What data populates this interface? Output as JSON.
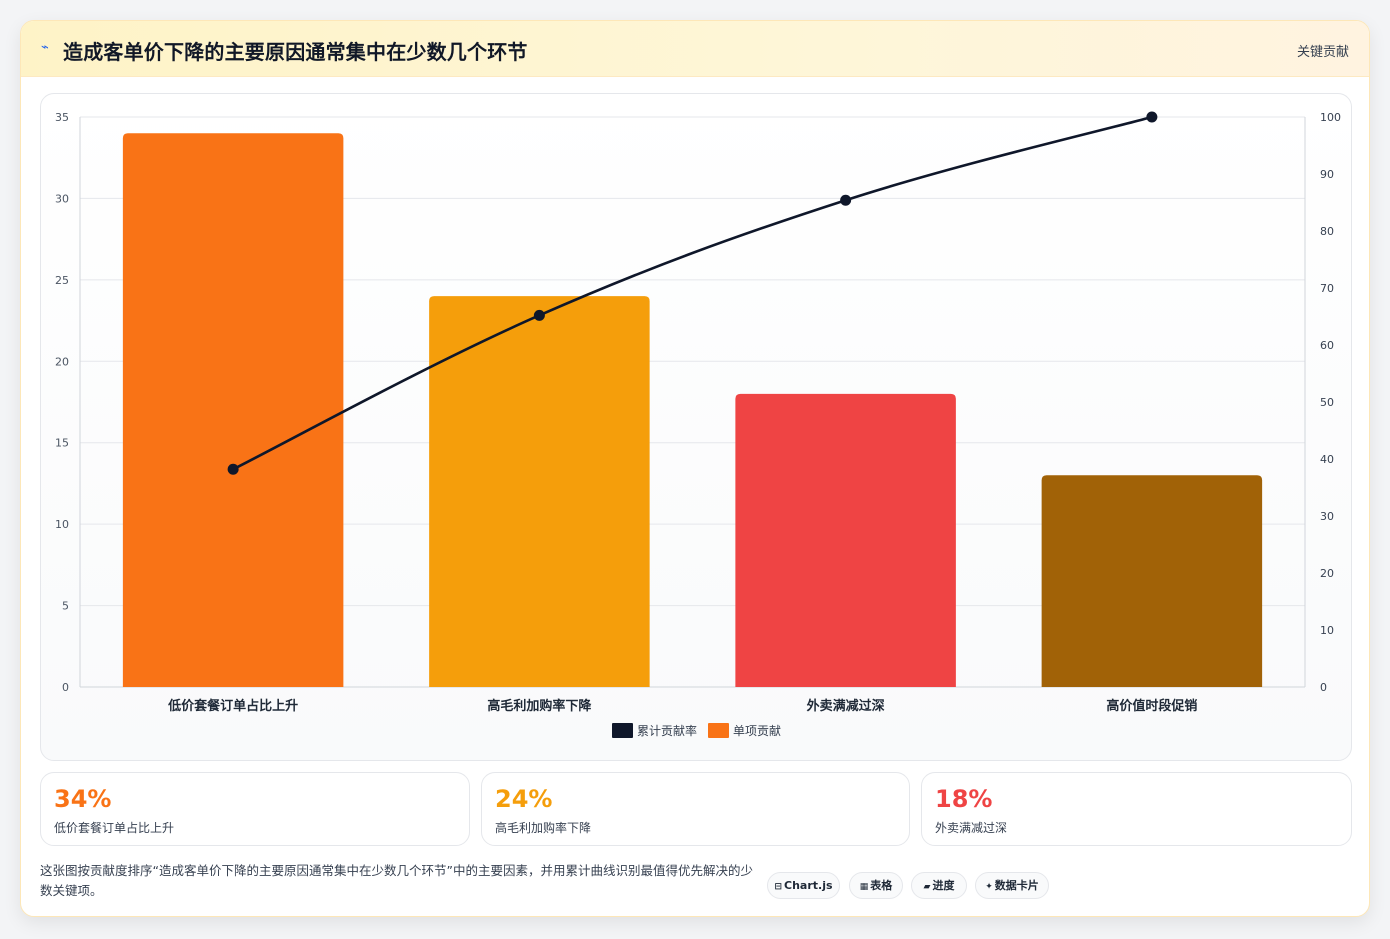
{
  "header": {
    "title": "造成客单价下降的主要原因通常集中在少数几个环节",
    "badge": "关键贡献"
  },
  "colors": {
    "line": "#0f172a",
    "bars": [
      "#f97316",
      "#f59e0b",
      "#ef4444",
      "#a16207"
    ]
  },
  "chart_data": {
    "type": "bar",
    "categories": [
      "低价套餐订单占比上升",
      "高毛利加购率下降",
      "外卖满减过深",
      "高价值时段促销"
    ],
    "series": [
      {
        "name": "单项贡献",
        "type": "bar",
        "axis": "left",
        "values": [
          34,
          24,
          18,
          13
        ]
      },
      {
        "name": "累计贡献率",
        "type": "line",
        "axis": "right",
        "values": [
          38.2,
          65.2,
          85.4,
          100
        ]
      }
    ],
    "ylim_left": [
      0,
      35
    ],
    "yticks_left": [
      0,
      5,
      10,
      15,
      20,
      25,
      30,
      35
    ],
    "ylim_right": [
      0,
      100
    ],
    "yticks_right": [
      0,
      10,
      20,
      30,
      40,
      50,
      60,
      70,
      80,
      90,
      100
    ],
    "grid": true,
    "legend_position": "bottom",
    "legend": [
      {
        "label": "累计贡献率",
        "color": "#0f172a"
      },
      {
        "label": "单项贡献",
        "color": "#f97316"
      }
    ]
  },
  "stats": [
    {
      "value": "34%",
      "label": "低价套餐订单占比上升",
      "color": "#f97316"
    },
    {
      "value": "24%",
      "label": "高毛利加购率下降",
      "color": "#f59e0b"
    },
    {
      "value": "18%",
      "label": "外卖满减过深",
      "color": "#ef4444"
    }
  ],
  "description": "这张图按贡献度排序“造成客单价下降的主要原因通常集中在少数几个环节”中的主要因素，并用累计曲线识别最值得优先解决的少数关键项。",
  "chips": [
    {
      "icon": "chart-icon",
      "glyph": "⊟",
      "label": "Chart.js"
    },
    {
      "icon": "table-icon",
      "glyph": "▦",
      "label": "表格"
    },
    {
      "icon": "progress-icon",
      "glyph": "▰",
      "label": "进度"
    },
    {
      "icon": "sparkle-icon",
      "glyph": "✦",
      "label": "数据卡片"
    }
  ]
}
